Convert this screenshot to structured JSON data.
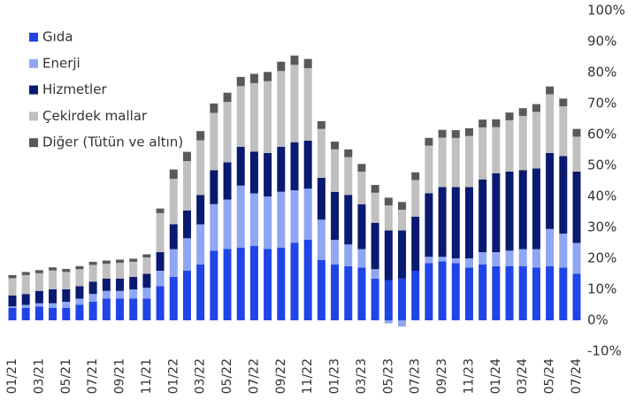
{
  "chart_data": {
    "type": "stacked_bar",
    "categories": [
      "01/21",
      null,
      "03/21",
      null,
      "05/21",
      null,
      "07/21",
      null,
      "09/21",
      null,
      "11/21",
      null,
      "01/22",
      null,
      "03/22",
      null,
      "05/22",
      null,
      "07/22",
      null,
      "09/22",
      null,
      "11/22",
      null,
      "01/23",
      null,
      "03/23",
      null,
      "05/23",
      null,
      "07/23",
      null,
      "09/23",
      null,
      "11/23",
      null,
      "01/24",
      null,
      "03/24",
      null,
      "05/24",
      null,
      "07/24"
    ],
    "series": [
      {
        "name": "Gıda",
        "color": "#1f45e6",
        "values": [
          4,
          4,
          4.5,
          4,
          4,
          5,
          6,
          7,
          7,
          7,
          7,
          11,
          14,
          16,
          18,
          22.5,
          23,
          23.5,
          24,
          23,
          23.5,
          25,
          26,
          19.5,
          18,
          17.5,
          17,
          13.5,
          13,
          13.5,
          16,
          18.5,
          19,
          18.5,
          17,
          18,
          17.5,
          17.5,
          17.5,
          17,
          17.5,
          17,
          15
        ]
      },
      {
        "name": "Enerji",
        "color": "#8fa6f2",
        "values": [
          0.5,
          1,
          1,
          1.5,
          2,
          2,
          2.5,
          2.5,
          2.5,
          3,
          3.5,
          5,
          9,
          10.5,
          13,
          15,
          16,
          20,
          17,
          17,
          18,
          17,
          16.5,
          13,
          8,
          7,
          6,
          3,
          -1,
          -2,
          0,
          2,
          1.5,
          1.5,
          3,
          4,
          4.5,
          5,
          5.5,
          6,
          12,
          11,
          10
        ]
      },
      {
        "name": "Hizmetler",
        "color": "#0a1a70",
        "values": [
          3.5,
          3.5,
          4,
          4.5,
          4,
          4,
          4,
          4,
          4,
          4,
          4.5,
          6,
          8,
          9,
          9.5,
          11,
          12,
          12.5,
          13.5,
          14,
          14.5,
          15.5,
          15.5,
          13.5,
          15.5,
          16,
          14.5,
          15,
          16,
          15.5,
          17.5,
          20.5,
          22.5,
          23,
          23,
          23.5,
          25.5,
          25.5,
          25.5,
          26,
          24.5,
          25,
          23
        ]
      },
      {
        "name": "Çekirdek mallar",
        "color": "#c0c0c0",
        "values": [
          5.6,
          6.1,
          5.7,
          6.1,
          5.6,
          5.5,
          5.4,
          4.8,
          5.1,
          4.9,
          5.3,
          12.6,
          14.7,
          15.9,
          17.6,
          18.5,
          19.5,
          19.6,
          22.1,
          23.2,
          24.5,
          25,
          23.4,
          15.8,
          13.7,
          12.2,
          10.5,
          9.7,
          8.1,
          6.7,
          11.8,
          15.4,
          16,
          15.9,
          16.5,
          16.8,
          14.9,
          16.6,
          17.5,
          18.3,
          19,
          16.1,
          11.3
        ]
      },
      {
        "name": "Diğer (Tütün ve altın)",
        "color": "#595959",
        "values": [
          1,
          1,
          1,
          1,
          1,
          1,
          1,
          1,
          1,
          1,
          1,
          1.5,
          3,
          3,
          3,
          3,
          3,
          3,
          3,
          3,
          3,
          3,
          3,
          2.5,
          2.5,
          2.5,
          2.5,
          2.5,
          2.5,
          2.5,
          2.5,
          2.5,
          2.5,
          2.5,
          2.5,
          2.5,
          2.5,
          2.5,
          2.5,
          2.5,
          2.5,
          2.5,
          2.5
        ]
      }
    ],
    "ylim": [
      -10,
      100
    ],
    "yticks": [
      {
        "value": -10,
        "label": "-10%"
      },
      {
        "value": 0,
        "label": "0%"
      },
      {
        "value": 10,
        "label": "10%"
      },
      {
        "value": 20,
        "label": "20%"
      },
      {
        "value": 30,
        "label": "30%"
      },
      {
        "value": 40,
        "label": "40%"
      },
      {
        "value": 50,
        "label": "50%"
      },
      {
        "value": 60,
        "label": "60%"
      },
      {
        "value": 70,
        "label": "70%"
      },
      {
        "value": 80,
        "label": "80%"
      },
      {
        "value": 90,
        "label": "90%"
      },
      {
        "value": 100,
        "label": "100%"
      }
    ],
    "legend": "top-left",
    "grid": false
  }
}
